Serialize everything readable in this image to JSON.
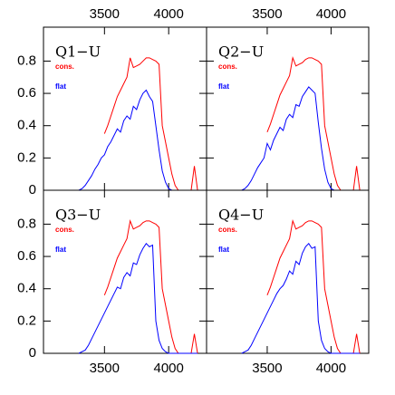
{
  "chart_data": [
    {
      "type": "line",
      "title": "Q1−U",
      "xtick_side": "top",
      "ytick_labels": true,
      "x": [
        3300,
        3325,
        3350,
        3375,
        3400,
        3425,
        3450,
        3475,
        3500,
        3525,
        3550,
        3575,
        3600,
        3625,
        3650,
        3675,
        3700,
        3725,
        3750,
        3775,
        3800,
        3825,
        3850,
        3875,
        3900,
        3925,
        3950,
        3975,
        4000,
        4025,
        4050,
        4075,
        4100,
        4125,
        4150,
        4175,
        4200,
        4225
      ],
      "series": [
        {
          "name": "cons.",
          "color": "#ff0000",
          "values": [
            null,
            null,
            null,
            null,
            null,
            null,
            null,
            null,
            0.35,
            0.4,
            0.46,
            0.52,
            0.58,
            0.62,
            0.66,
            0.7,
            0.82,
            0.76,
            0.77,
            0.78,
            0.8,
            0.82,
            0.82,
            0.81,
            0.8,
            0.78,
            0.4,
            0.3,
            0.2,
            0.1,
            0.03,
            0,
            0,
            0,
            0,
            0,
            0.15,
            0
          ]
        },
        {
          "name": "flat",
          "color": "#0000ff",
          "values": [
            0,
            0.01,
            0.03,
            0.06,
            0.09,
            0.13,
            0.16,
            0.2,
            0.22,
            0.27,
            0.3,
            0.34,
            0.38,
            0.36,
            0.43,
            0.46,
            0.44,
            0.52,
            0.5,
            0.56,
            0.6,
            0.62,
            0.58,
            0.55,
            0.4,
            0.25,
            0.12,
            0.05,
            0.01,
            0,
            0,
            0,
            0,
            0,
            0,
            0,
            0,
            0
          ]
        }
      ],
      "xlim": [
        3025,
        4295
      ],
      "xticks": [
        3500,
        4000
      ],
      "ylim": [
        0,
        1.01
      ],
      "yticks": [
        0,
        0.2,
        0.4,
        0.6,
        0.8
      ]
    },
    {
      "type": "line",
      "title": "Q2−U",
      "xtick_side": "top",
      "ytick_labels": false,
      "x": [
        3300,
        3325,
        3350,
        3375,
        3400,
        3425,
        3450,
        3475,
        3500,
        3525,
        3550,
        3575,
        3600,
        3625,
        3650,
        3675,
        3700,
        3725,
        3750,
        3775,
        3800,
        3825,
        3850,
        3875,
        3900,
        3925,
        3950,
        3975,
        4000,
        4025,
        4050,
        4075,
        4100,
        4125,
        4150,
        4175,
        4200,
        4225
      ],
      "series": [
        {
          "name": "cons.",
          "color": "#ff0000",
          "values": [
            null,
            null,
            null,
            null,
            null,
            null,
            null,
            null,
            0.36,
            0.41,
            0.47,
            0.53,
            0.59,
            0.63,
            0.67,
            0.71,
            0.82,
            0.77,
            0.78,
            0.79,
            0.81,
            0.82,
            0.82,
            0.81,
            0.8,
            0.78,
            0.4,
            0.3,
            0.2,
            0.1,
            0.03,
            0,
            0,
            0,
            0,
            0,
            0.15,
            0
          ]
        },
        {
          "name": "flat",
          "color": "#0000ff",
          "values": [
            0,
            0.01,
            0.03,
            0.06,
            0.1,
            0.14,
            0.17,
            0.2,
            0.29,
            0.25,
            0.31,
            0.35,
            0.39,
            0.37,
            0.44,
            0.47,
            0.45,
            0.53,
            0.52,
            0.58,
            0.61,
            0.64,
            0.62,
            0.6,
            0.42,
            0.26,
            0.13,
            0.05,
            0.01,
            0,
            0,
            0,
            0,
            0,
            0,
            0,
            0,
            0
          ]
        }
      ],
      "xlim": [
        3025,
        4295
      ],
      "xticks": [
        3500,
        4000
      ],
      "ylim": [
        0,
        1.01
      ],
      "yticks": [
        0,
        0.2,
        0.4,
        0.6,
        0.8
      ]
    },
    {
      "type": "line",
      "title": "Q3−U",
      "xtick_side": "bottom",
      "ytick_labels": true,
      "x": [
        3300,
        3325,
        3350,
        3375,
        3400,
        3425,
        3450,
        3475,
        3500,
        3525,
        3550,
        3575,
        3600,
        3625,
        3650,
        3675,
        3700,
        3725,
        3750,
        3775,
        3800,
        3825,
        3850,
        3875,
        3900,
        3925,
        3950,
        3975,
        4000,
        4025,
        4050,
        4075,
        4100,
        4125,
        4150,
        4175,
        4200,
        4225
      ],
      "series": [
        {
          "name": "cons.",
          "color": "#ff0000",
          "values": [
            null,
            null,
            null,
            null,
            null,
            null,
            null,
            null,
            0.36,
            0.41,
            0.47,
            0.53,
            0.59,
            0.63,
            0.67,
            0.71,
            0.82,
            0.77,
            0.78,
            0.79,
            0.81,
            0.82,
            0.82,
            0.81,
            0.8,
            0.78,
            0.4,
            0.3,
            0.2,
            0.1,
            0.03,
            0,
            0,
            0,
            0,
            0,
            0.12,
            0
          ]
        },
        {
          "name": "flat",
          "color": "#0000ff",
          "values": [
            0,
            0.01,
            0.02,
            0.05,
            0.09,
            0.13,
            0.17,
            0.21,
            0.25,
            0.29,
            0.33,
            0.37,
            0.41,
            0.4,
            0.47,
            0.5,
            0.48,
            0.56,
            0.55,
            0.61,
            0.65,
            0.68,
            0.66,
            0.67,
            0.2,
            0.08,
            0.03,
            0.01,
            0,
            0,
            0,
            0,
            0,
            0,
            0,
            0,
            0,
            0
          ]
        }
      ],
      "xlim": [
        3025,
        4295
      ],
      "xticks": [
        3500,
        4000
      ],
      "ylim": [
        0,
        1.01
      ],
      "yticks": [
        0,
        0.2,
        0.4,
        0.6,
        0.8
      ]
    },
    {
      "type": "line",
      "title": "Q4−U",
      "xtick_side": "bottom",
      "ytick_labels": false,
      "x": [
        3300,
        3325,
        3350,
        3375,
        3400,
        3425,
        3450,
        3475,
        3500,
        3525,
        3550,
        3575,
        3600,
        3625,
        3650,
        3675,
        3700,
        3725,
        3750,
        3775,
        3800,
        3825,
        3850,
        3875,
        3900,
        3925,
        3950,
        3975,
        4000,
        4025,
        4050,
        4075,
        4100,
        4125,
        4150,
        4175,
        4200,
        4225
      ],
      "series": [
        {
          "name": "cons.",
          "color": "#ff0000",
          "values": [
            null,
            null,
            null,
            null,
            null,
            null,
            null,
            null,
            0.36,
            0.41,
            0.47,
            0.53,
            0.59,
            0.63,
            0.67,
            0.71,
            0.82,
            0.77,
            0.78,
            0.79,
            0.81,
            0.82,
            0.82,
            0.81,
            0.8,
            0.78,
            0.4,
            0.3,
            0.2,
            0.1,
            0.03,
            0,
            0,
            0,
            0,
            0,
            0.12,
            0
          ]
        },
        {
          "name": "flat",
          "color": "#0000ff",
          "values": [
            0,
            0.01,
            0.02,
            0.05,
            0.09,
            0.13,
            0.17,
            0.21,
            0.25,
            0.29,
            0.33,
            0.37,
            0.4,
            0.42,
            0.46,
            0.51,
            0.49,
            0.57,
            0.55,
            0.62,
            0.66,
            0.68,
            0.65,
            0.66,
            0.2,
            0.08,
            0.03,
            0.01,
            0,
            0,
            0,
            0,
            0,
            0,
            0,
            0,
            0,
            0
          ]
        }
      ],
      "xlim": [
        3025,
        4295
      ],
      "xticks": [
        3500,
        4000
      ],
      "ylim": [
        0,
        1.01
      ],
      "yticks": [
        0,
        0.2,
        0.4,
        0.6,
        0.8
      ]
    }
  ]
}
